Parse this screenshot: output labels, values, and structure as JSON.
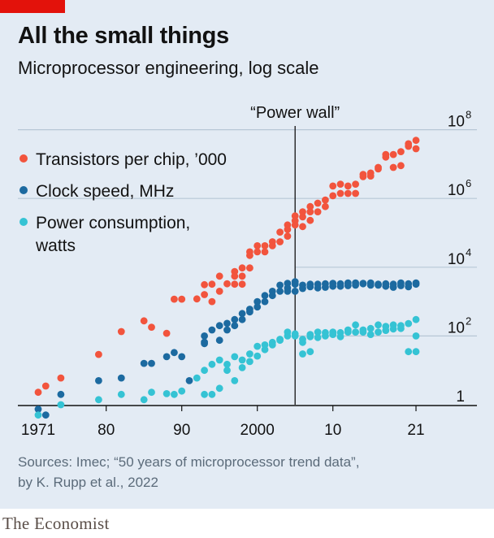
{
  "header": {
    "title": "All the small things",
    "subtitle": "Microprocessor engineering, log scale"
  },
  "footer": {
    "sources_line1": "Sources: Imec; “50 years of microprocessor trend data”,",
    "sources_line2": "by K. Rupp et al., 2022",
    "brand": "The Economist"
  },
  "colors": {
    "panel_background": "#e3ebf4",
    "brand_red": "#e3120b",
    "transistors": "#f2543d",
    "clock_speed": "#1c6aa0",
    "power": "#35c3d4",
    "gridline": "#b7c7d6"
  },
  "chart_data": {
    "type": "scatter",
    "x_scale": "year",
    "y_scale": "log10",
    "xlim": [
      1969,
      2024
    ],
    "ylim": [
      0.7,
      100000000
    ],
    "x_ticks": [
      {
        "value": 1971,
        "label": "1971"
      },
      {
        "value": 1980,
        "label": "80"
      },
      {
        "value": 1990,
        "label": "90"
      },
      {
        "value": 2000,
        "label": "2000"
      },
      {
        "value": 2010,
        "label": "10"
      },
      {
        "value": 2021,
        "label": "21"
      }
    ],
    "y_ticks": [
      {
        "value": 1,
        "base": "1",
        "exp": ""
      },
      {
        "value": 100,
        "base": "10",
        "exp": "2"
      },
      {
        "value": 10000,
        "base": "10",
        "exp": "4"
      },
      {
        "value": 1000000,
        "base": "10",
        "exp": "6"
      },
      {
        "value": 100000000,
        "base": "10",
        "exp": "8"
      }
    ],
    "grid": true,
    "legend_position": "top-left",
    "annotation": {
      "text": "“Power wall”",
      "x": 2005
    },
    "series": [
      {
        "name": "Transistors per chip, ’000",
        "color": "#f2543d",
        "points": [
          [
            1971,
            2.3
          ],
          [
            1972,
            3.5
          ],
          [
            1974,
            6
          ],
          [
            1979,
            29
          ],
          [
            1982,
            134
          ],
          [
            1985,
            275
          ],
          [
            1986,
            180
          ],
          [
            1988,
            120
          ],
          [
            1989,
            1180
          ],
          [
            1990,
            1180
          ],
          [
            1992,
            1200
          ],
          [
            1993,
            3100
          ],
          [
            1993,
            1600
          ],
          [
            1994,
            3200
          ],
          [
            1994,
            1000
          ],
          [
            1995,
            5500
          ],
          [
            1995,
            2000
          ],
          [
            1996,
            3300
          ],
          [
            1997,
            7500
          ],
          [
            1997,
            5500
          ],
          [
            1997,
            3200
          ],
          [
            1998,
            9500
          ],
          [
            1998,
            5500
          ],
          [
            1998,
            3200
          ],
          [
            1999,
            9500
          ],
          [
            1999,
            28000
          ],
          [
            1999,
            22000
          ],
          [
            2000,
            42000
          ],
          [
            2000,
            28000
          ],
          [
            2001,
            42000
          ],
          [
            2001,
            28000
          ],
          [
            2002,
            55000
          ],
          [
            2002,
            42000
          ],
          [
            2003,
            105000
          ],
          [
            2003,
            55000
          ],
          [
            2004,
            125000
          ],
          [
            2004,
            170000
          ],
          [
            2004,
            80000
          ],
          [
            2005,
            170000
          ],
          [
            2005,
            225000
          ],
          [
            2005,
            310000
          ],
          [
            2006,
            291000
          ],
          [
            2006,
            410000
          ],
          [
            2006,
            152000
          ],
          [
            2007,
            410000
          ],
          [
            2007,
            580000
          ],
          [
            2007,
            230000
          ],
          [
            2008,
            730000
          ],
          [
            2008,
            410000
          ],
          [
            2009,
            580000
          ],
          [
            2009,
            900000
          ],
          [
            2010,
            2300000
          ],
          [
            2010,
            1200000
          ],
          [
            2011,
            2600000
          ],
          [
            2011,
            1400000
          ],
          [
            2012,
            2300000
          ],
          [
            2012,
            1400000
          ],
          [
            2013,
            1400000
          ],
          [
            2013,
            2600000
          ],
          [
            2014,
            4300000
          ],
          [
            2014,
            5000000
          ],
          [
            2015,
            5500000
          ],
          [
            2015,
            4500000
          ],
          [
            2016,
            7200000
          ],
          [
            2016,
            8000000
          ],
          [
            2017,
            19000000
          ],
          [
            2017,
            16000000
          ],
          [
            2018,
            19000000
          ],
          [
            2018,
            8000000
          ],
          [
            2019,
            9000000
          ],
          [
            2019,
            23000000
          ],
          [
            2020,
            39000000
          ],
          [
            2020,
            33000000
          ],
          [
            2021,
            28000000
          ],
          [
            2021,
            49000000
          ]
        ]
      },
      {
        "name": "Clock speed, MHz",
        "color": "#1c6aa0",
        "points": [
          [
            1971,
            0.74
          ],
          [
            1972,
            0.5
          ],
          [
            1974,
            2
          ],
          [
            1979,
            5
          ],
          [
            1982,
            6
          ],
          [
            1985,
            16
          ],
          [
            1986,
            16
          ],
          [
            1988,
            25
          ],
          [
            1989,
            33
          ],
          [
            1990,
            25
          ],
          [
            1991,
            5
          ],
          [
            1993,
            66
          ],
          [
            1993,
            100
          ],
          [
            1993,
            60
          ],
          [
            1994,
            150
          ],
          [
            1995,
            200
          ],
          [
            1995,
            75
          ],
          [
            1996,
            150
          ],
          [
            1996,
            233
          ],
          [
            1997,
            300
          ],
          [
            1997,
            200
          ],
          [
            1998,
            450
          ],
          [
            1998,
            300
          ],
          [
            1999,
            600
          ],
          [
            1999,
            500
          ],
          [
            2000,
            1000
          ],
          [
            2000,
            700
          ],
          [
            2001,
            1000
          ],
          [
            2001,
            1500
          ],
          [
            2002,
            2000
          ],
          [
            2002,
            1500
          ],
          [
            2003,
            3000
          ],
          [
            2003,
            2000
          ],
          [
            2004,
            3400
          ],
          [
            2004,
            2500
          ],
          [
            2004,
            2000
          ],
          [
            2005,
            3800
          ],
          [
            2005,
            3200
          ],
          [
            2005,
            2000
          ],
          [
            2006,
            3000
          ],
          [
            2006,
            2400
          ],
          [
            2007,
            3200
          ],
          [
            2007,
            2700
          ],
          [
            2008,
            3200
          ],
          [
            2008,
            2500
          ],
          [
            2009,
            3300
          ],
          [
            2009,
            2600
          ],
          [
            2010,
            3400
          ],
          [
            2010,
            2800
          ],
          [
            2011,
            3300
          ],
          [
            2011,
            2800
          ],
          [
            2012,
            3500
          ],
          [
            2012,
            2900
          ],
          [
            2013,
            3500
          ],
          [
            2013,
            3000
          ],
          [
            2014,
            3300
          ],
          [
            2014,
            3400
          ],
          [
            2015,
            3500
          ],
          [
            2015,
            3000
          ],
          [
            2016,
            3200
          ],
          [
            2016,
            3000
          ],
          [
            2017,
            3300
          ],
          [
            2017,
            2800
          ],
          [
            2018,
            3200
          ],
          [
            2018,
            2600
          ],
          [
            2019,
            3500
          ],
          [
            2019,
            2900
          ],
          [
            2020,
            3300
          ],
          [
            2020,
            2700
          ],
          [
            2021,
            3200
          ],
          [
            2021,
            3500
          ]
        ]
      },
      {
        "name": "Power consumption, watts",
        "color": "#35c3d4",
        "points": [
          [
            1971,
            0.5
          ],
          [
            1974,
            1
          ],
          [
            1979,
            1.4
          ],
          [
            1982,
            2
          ],
          [
            1985,
            1.4
          ],
          [
            1986,
            2.3
          ],
          [
            1988,
            2.1
          ],
          [
            1989,
            2
          ],
          [
            1990,
            2.5
          ],
          [
            1992,
            6
          ],
          [
            1993,
            2
          ],
          [
            1993,
            10
          ],
          [
            1994,
            2
          ],
          [
            1994,
            15
          ],
          [
            1995,
            3
          ],
          [
            1995,
            20
          ],
          [
            1996,
            10
          ],
          [
            1996,
            15
          ],
          [
            1997,
            5
          ],
          [
            1997,
            25
          ],
          [
            1998,
            12
          ],
          [
            1998,
            20
          ],
          [
            1999,
            30
          ],
          [
            1999,
            18
          ],
          [
            2000,
            50
          ],
          [
            2000,
            26
          ],
          [
            2001,
            40
          ],
          [
            2001,
            55
          ],
          [
            2002,
            65
          ],
          [
            2002,
            55
          ],
          [
            2003,
            80
          ],
          [
            2003,
            75
          ],
          [
            2004,
            100
          ],
          [
            2004,
            130
          ],
          [
            2005,
            115
          ],
          [
            2005,
            100
          ],
          [
            2006,
            30
          ],
          [
            2006,
            80
          ],
          [
            2006,
            65
          ],
          [
            2007,
            35
          ],
          [
            2007,
            95
          ],
          [
            2007,
            110
          ],
          [
            2008,
            130
          ],
          [
            2008,
            90
          ],
          [
            2009,
            125
          ],
          [
            2009,
            100
          ],
          [
            2010,
            130
          ],
          [
            2010,
            110
          ],
          [
            2011,
            125
          ],
          [
            2011,
            95
          ],
          [
            2012,
            150
          ],
          [
            2012,
            130
          ],
          [
            2013,
            210
          ],
          [
            2013,
            130
          ],
          [
            2014,
            150
          ],
          [
            2014,
            130
          ],
          [
            2015,
            165
          ],
          [
            2015,
            110
          ],
          [
            2016,
            130
          ],
          [
            2016,
            210
          ],
          [
            2017,
            145
          ],
          [
            2017,
            190
          ],
          [
            2018,
            210
          ],
          [
            2018,
            160
          ],
          [
            2019,
            165
          ],
          [
            2019,
            200
          ],
          [
            2020,
            35
          ],
          [
            2020,
            230
          ],
          [
            2021,
            35
          ],
          [
            2021,
            300
          ],
          [
            2021,
            100
          ]
        ]
      }
    ]
  }
}
